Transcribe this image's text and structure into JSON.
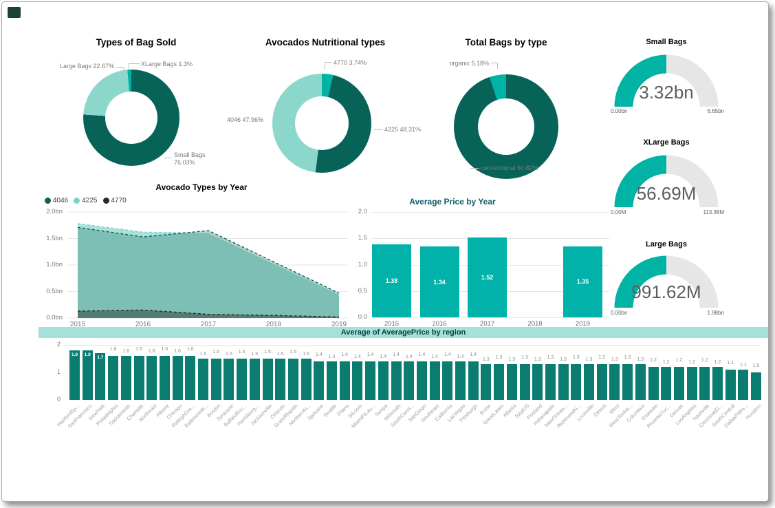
{
  "logo_color": "#1c3f3a",
  "chart_data": [
    {
      "id": "types_of_bag_sold",
      "type": "pie",
      "title": "Types of Bag Sold",
      "labels": [
        "Small Bags",
        "Large Bags",
        "XLarge Bags"
      ],
      "values": [
        76.03,
        22.67,
        1.3
      ],
      "unit": "%",
      "colors": [
        "#076358",
        "#8bd7cc",
        "#00b3a4"
      ]
    },
    {
      "id": "avocados_nutritional_types",
      "type": "pie",
      "title": "Avocados Nutritional types",
      "labels": [
        "4770",
        "4225",
        "4046"
      ],
      "values": [
        3.74,
        48.31,
        47.96
      ],
      "unit": "%",
      "colors": [
        "#00b3a4",
        "#076358",
        "#8bd7cc"
      ]
    },
    {
      "id": "total_bags_by_type",
      "type": "pie",
      "title": "Total Bags by type",
      "labels": [
        "conventional",
        "organic"
      ],
      "values": [
        94.82,
        5.18
      ],
      "unit": "%",
      "colors": [
        "#076358",
        "#00b3a4"
      ]
    },
    {
      "id": "small_bags_gauge",
      "type": "gauge",
      "title": "Small Bags",
      "value_display": "3.32bn",
      "min_display": "0.00bn",
      "max_display": "6.65bn",
      "color": "#00b3a4"
    },
    {
      "id": "xlarge_bags_gauge",
      "type": "gauge",
      "title": "XLarge Bags",
      "value_display": "56.69M",
      "min_display": "0.00M",
      "max_display": "113.38M",
      "color": "#00b3a4"
    },
    {
      "id": "large_bags_gauge",
      "type": "gauge",
      "title": "Large Bags",
      "value_display": "991.62M",
      "min_display": "0.00bn",
      "max_display": "1.98bn",
      "color": "#00b3a4"
    },
    {
      "id": "avocado_types_by_year",
      "type": "area",
      "title": "Avocado Types by Year",
      "x": [
        2015,
        2016,
        2017,
        2018,
        2019
      ],
      "series": [
        {
          "name": "4046",
          "color": "#0b6157",
          "values": [
            1.71,
            1.53,
            1.65,
            1.06,
            0.47
          ]
        },
        {
          "name": "4225",
          "color": "#7fd0c7",
          "values": [
            1.78,
            1.62,
            1.6,
            1.02,
            0.44
          ]
        },
        {
          "name": "4770",
          "color": "#2b2a29",
          "values": [
            0.13,
            0.15,
            0.07,
            0.05,
            0.02
          ]
        }
      ],
      "ylim": [
        0,
        2
      ],
      "yticks": [
        "0.0bn",
        "0.5bn",
        "1.0bn",
        "1.5bn",
        "2.0bn"
      ]
    },
    {
      "id": "average_price_by_year",
      "type": "bar",
      "title": "Average Price by Year",
      "categories": [
        "2015",
        "2016",
        "2017",
        "2018",
        "2019"
      ],
      "values": [
        1.38,
        1.34,
        1.52,
        null,
        1.35
      ],
      "ylim": [
        0,
        2
      ],
      "yticks": [
        "0.0",
        "0.5",
        "1.0",
        "1.5",
        "2.0"
      ],
      "color": "#00b2a9"
    },
    {
      "id": "average_price_by_region",
      "type": "bar",
      "title": "Average of AveragePrice by region",
      "header_bg": "#a6e1d9",
      "categories": [
        "HartfordSp...",
        "SanFrancisco",
        "NewYork",
        "Philadelphia",
        "Sacramento",
        "Charlotte",
        "Northeast",
        "Albany",
        "Chicago",
        "RaleighGre...",
        "BaltimoreW...",
        "Boston",
        "Syracuse",
        "BuffaloRoc...",
        "Harrisburg...",
        "Jacksonville",
        "Orlando",
        "GrandRapids",
        "NorthernN...",
        "Spokane",
        "Seattle",
        "Plains",
        "StLouis",
        "MiamiFtLau...",
        "Tampa",
        "Midsouth",
        "SouthCarol...",
        "SanDiego",
        "Southeast",
        "California",
        "LasVegas",
        "Pittsburgh",
        "Boise",
        "GreatLakes",
        "Atlanta",
        "TotalUS",
        "Portland",
        "Indianapolis",
        "NewOrlean...",
        "RichmondN...",
        "Louisville",
        "Detroit",
        "West",
        "WestTexNe...",
        "Columbus",
        "Roanoke",
        "PhoenixTuc...",
        "Denver",
        "LosAngeles",
        "Nashville",
        "CincinnatiD...",
        "SouthCentral",
        "DallasFtWo...",
        "Houston"
      ],
      "values": [
        1.8,
        1.8,
        1.7,
        1.6,
        1.6,
        1.6,
        1.6,
        1.6,
        1.6,
        1.6,
        1.5,
        1.5,
        1.5,
        1.5,
        1.5,
        1.5,
        1.5,
        1.5,
        1.5,
        1.4,
        1.4,
        1.4,
        1.4,
        1.4,
        1.4,
        1.4,
        1.4,
        1.4,
        1.4,
        1.4,
        1.4,
        1.4,
        1.3,
        1.3,
        1.3,
        1.3,
        1.3,
        1.3,
        1.3,
        1.3,
        1.3,
        1.3,
        1.3,
        1.3,
        1.3,
        1.2,
        1.2,
        1.2,
        1.2,
        1.2,
        1.2,
        1.1,
        1.1,
        1.0
      ],
      "ylim": [
        0,
        2
      ],
      "yticks": [
        "0",
        "1",
        "2"
      ],
      "color": "#0b7d70"
    }
  ]
}
